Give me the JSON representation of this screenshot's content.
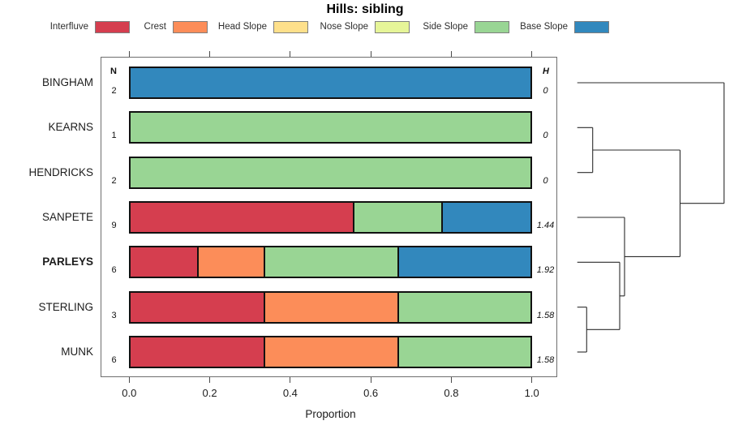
{
  "chart_data": {
    "type": "bar",
    "subtype": "horizontal_stacked_proportion_with_dendrogram",
    "title": "Hills: sibling",
    "xlabel": "Proportion",
    "xlim": [
      0.0,
      1.0
    ],
    "x_ticks": [
      {
        "label": "0.0",
        "value": 0.0
      },
      {
        "label": "0.2",
        "value": 0.2
      },
      {
        "label": "0.4",
        "value": 0.4
      },
      {
        "label": "0.6",
        "value": 0.6
      },
      {
        "label": "0.8",
        "value": 0.8
      },
      {
        "label": "1.0",
        "value": 1.0
      }
    ],
    "grid": false,
    "legend_position": "top",
    "legend": [
      "Interfluve",
      "Crest",
      "Head Slope",
      "Nose Slope",
      "Side Slope",
      "Base Slope"
    ],
    "palette": {
      "Interfluve": "#D53E4F",
      "Crest": "#FC8D59",
      "Head Slope": "#FEE08B",
      "Nose Slope": "#E6F598",
      "Side Slope": "#99D594",
      "Base Slope": "#3288BD"
    },
    "columns": {
      "n_header": "N",
      "h_header": "H"
    },
    "rows": [
      {
        "label": "BINGHAM",
        "bold": false,
        "n": "2",
        "h": "0",
        "segments": [
          {
            "class": "Base Slope",
            "proportion": 1.0
          }
        ]
      },
      {
        "label": "KEARNS",
        "bold": false,
        "n": "1",
        "h": "0",
        "segments": [
          {
            "class": "Side Slope",
            "proportion": 1.0
          }
        ]
      },
      {
        "label": "HENDRICKS",
        "bold": false,
        "n": "2",
        "h": "0",
        "segments": [
          {
            "class": "Side Slope",
            "proportion": 1.0
          }
        ]
      },
      {
        "label": "SANPETE",
        "bold": false,
        "n": "9",
        "h": "1.44",
        "segments": [
          {
            "class": "Interfluve",
            "proportion": 0.5556
          },
          {
            "class": "Side Slope",
            "proportion": 0.2222
          },
          {
            "class": "Base Slope",
            "proportion": 0.2222
          }
        ]
      },
      {
        "label": "PARLEYS",
        "bold": true,
        "n": "6",
        "h": "1.92",
        "segments": [
          {
            "class": "Interfluve",
            "proportion": 0.1667
          },
          {
            "class": "Crest",
            "proportion": 0.1667
          },
          {
            "class": "Side Slope",
            "proportion": 0.3333
          },
          {
            "class": "Base Slope",
            "proportion": 0.3333
          }
        ]
      },
      {
        "label": "STERLING",
        "bold": false,
        "n": "3",
        "h": "1.58",
        "segments": [
          {
            "class": "Interfluve",
            "proportion": 0.3333
          },
          {
            "class": "Crest",
            "proportion": 0.3333
          },
          {
            "class": "Side Slope",
            "proportion": 0.3334
          }
        ]
      },
      {
        "label": "MUNK",
        "bold": false,
        "n": "6",
        "h": "1.58",
        "segments": [
          {
            "class": "Interfluve",
            "proportion": 0.3333
          },
          {
            "class": "Crest",
            "proportion": 0.3333
          },
          {
            "class": "Side Slope",
            "proportion": 0.3334
          }
        ]
      }
    ],
    "dendrogram": {
      "orientation": "right",
      "tree": {
        "height": 1.0,
        "children": [
          {
            "leaf": 0
          },
          {
            "height": 0.7,
            "children": [
              {
                "height": 0.105,
                "children": [
                  {
                    "leaf": 1
                  },
                  {
                    "leaf": 2
                  }
                ]
              },
              {
                "height": 0.322,
                "children": [
                  {
                    "leaf": 3
                  },
                  {
                    "height": 0.289,
                    "children": [
                      {
                        "leaf": 4
                      },
                      {
                        "height": 0.064,
                        "children": [
                          {
                            "leaf": 5
                          },
                          {
                            "leaf": 6
                          }
                        ]
                      }
                    ]
                  }
                ]
              }
            ]
          }
        ]
      }
    }
  }
}
